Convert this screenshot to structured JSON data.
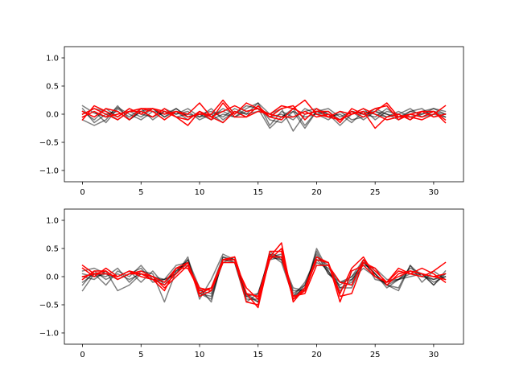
{
  "colors": {
    "black_series": "#000000",
    "red_series": "#ff0000",
    "background": "#ffffff"
  },
  "chart_data": [
    {
      "type": "line",
      "title": "",
      "xlabel": "",
      "ylabel": "",
      "xlim": [
        -1.55,
        32.55
      ],
      "ylim": [
        -1.2,
        1.2
      ],
      "xticks": [
        0,
        5,
        10,
        15,
        20,
        25,
        30
      ],
      "yticks": [
        -1.0,
        -0.5,
        0.0,
        0.5,
        1.0
      ],
      "xtick_labels": [
        "0",
        "5",
        "10",
        "15",
        "20",
        "25",
        "30"
      ],
      "ytick_labels": [
        "−1.0",
        "−0.5",
        "0.0",
        "0.5",
        "1.0"
      ],
      "grid": false,
      "x": [
        0,
        1,
        2,
        3,
        4,
        5,
        6,
        7,
        8,
        9,
        10,
        11,
        12,
        13,
        14,
        15,
        16,
        17,
        18,
        19,
        20,
        21,
        22,
        23,
        24,
        25,
        26,
        27,
        28,
        29,
        30,
        31
      ],
      "series": [
        {
          "color": "#000000",
          "opacity": 0.5,
          "values": [
            0.15,
            0.02,
            -0.05,
            0.12,
            0.0,
            -0.1,
            0.05,
            0.0,
            0.1,
            -0.05,
            0.0,
            0.05,
            -0.05,
            0.1,
            0.0,
            0.2,
            -0.2,
            0.05,
            -0.05,
            0.05,
            0.1,
            0.0,
            -0.1,
            0.05,
            0.0,
            0.05,
            -0.05,
            0.0,
            0.1,
            -0.05,
            0.05,
            0.0
          ]
        },
        {
          "color": "#000000",
          "opacity": 0.5,
          "values": [
            -0.1,
            -0.2,
            -0.1,
            0.15,
            -0.1,
            0.05,
            0.1,
            -0.05,
            0.05,
            -0.1,
            0.05,
            -0.05,
            0.1,
            0.0,
            0.15,
            0.1,
            -0.25,
            -0.05,
            0.1,
            -0.2,
            0.05,
            0.0,
            -0.2,
            0.0,
            0.1,
            -0.1,
            0.05,
            0.0,
            -0.1,
            0.05,
            0.1,
            0.0
          ]
        },
        {
          "color": "#000000",
          "opacity": 0.5,
          "values": [
            0.05,
            -0.1,
            0.1,
            -0.05,
            0.1,
            0.0,
            -0.05,
            0.1,
            0.0,
            0.05,
            -0.1,
            0.0,
            0.05,
            -0.05,
            0.1,
            0.2,
            0.0,
            0.1,
            -0.3,
            0.0,
            0.05,
            0.1,
            -0.05,
            0.05,
            -0.1,
            0.05,
            0.0,
            -0.1,
            0.05,
            0.1,
            -0.05,
            0.0
          ]
        },
        {
          "color": "#000000",
          "opacity": 0.5,
          "values": [
            -0.05,
            0.05,
            -0.15,
            0.1,
            -0.05,
            0.1,
            -0.1,
            0.05,
            -0.05,
            0.0,
            -0.05,
            0.1,
            -0.1,
            0.05,
            -0.05,
            0.15,
            -0.1,
            -0.15,
            0.05,
            -0.05,
            0.0,
            -0.1,
            0.05,
            -0.1,
            -0.05,
            0.1,
            0.0,
            -0.05,
            0.05,
            0.0,
            0.1,
            0.05
          ]
        },
        {
          "color": "#000000",
          "opacity": 0.5,
          "values": [
            0.0,
            0.1,
            0.05,
            -0.1,
            0.05,
            -0.05,
            0.1,
            -0.05,
            0.1,
            -0.05,
            0.0,
            -0.1,
            0.0,
            -0.05,
            0.05,
            0.1,
            -0.05,
            0.0,
            -0.1,
            0.1,
            0.0,
            0.05,
            -0.1,
            0.05,
            0.0,
            -0.05,
            0.1,
            -0.05,
            0.0,
            -0.05,
            0.0,
            -0.05
          ]
        },
        {
          "color": "#000000",
          "opacity": 0.5,
          "values": [
            0.1,
            -0.15,
            0.0,
            0.05,
            -0.1,
            0.05,
            -0.05,
            0.05,
            0.0,
            0.1,
            -0.05,
            0.0,
            -0.15,
            0.05,
            0.0,
            0.05,
            0.0,
            -0.05,
            0.05,
            -0.25,
            0.05,
            -0.05,
            0.0,
            -0.15,
            0.05,
            0.0,
            -0.05,
            0.05,
            -0.05,
            0.0,
            0.05,
            -0.05
          ]
        },
        {
          "color": "#ff0000",
          "opacity": 1.0,
          "values": [
            -0.1,
            0.15,
            0.05,
            -0.05,
            0.1,
            0.0,
            0.1,
            0.05,
            -0.05,
            -0.2,
            0.05,
            -0.1,
            0.2,
            -0.05,
            -0.05,
            0.15,
            -0.05,
            0.1,
            0.15,
            -0.1,
            0.1,
            -0.05,
            -0.1,
            0.05,
            -0.05,
            0.05,
            0.2,
            -0.05,
            -0.05,
            -0.1,
            0.0,
            0.15
          ]
        },
        {
          "color": "#ff0000",
          "opacity": 1.0,
          "values": [
            0.05,
            -0.05,
            0.1,
            0.05,
            -0.1,
            0.1,
            0.05,
            -0.1,
            0.05,
            0.0,
            0.2,
            -0.05,
            0.05,
            0.15,
            0.05,
            0.1,
            -0.05,
            -0.1,
            0.1,
            0.25,
            0.0,
            -0.05,
            0.05,
            0.0,
            0.05,
            -0.25,
            -0.05,
            0.0,
            -0.1,
            0.05,
            0.05,
            -0.1
          ]
        },
        {
          "color": "#ff0000",
          "opacity": 1.0,
          "values": [
            0.0,
            0.1,
            0.0,
            -0.1,
            0.05,
            0.1,
            0.1,
            0.0,
            0.05,
            -0.05,
            0.0,
            0.0,
            0.25,
            0.0,
            0.2,
            0.1,
            0.0,
            0.15,
            0.1,
            0.0,
            0.05,
            0.05,
            -0.15,
            0.1,
            0.0,
            0.1,
            0.15,
            -0.1,
            0.0,
            0.05,
            -0.05,
            0.0
          ]
        },
        {
          "color": "#ff0000",
          "opacity": 1.0,
          "values": [
            -0.05,
            0.05,
            -0.05,
            0.0,
            0.05,
            0.05,
            -0.05,
            0.1,
            -0.05,
            -0.1,
            0.05,
            -0.05,
            -0.15,
            0.05,
            -0.05,
            0.05,
            0.0,
            -0.05,
            -0.05,
            0.05,
            -0.05,
            0.0,
            -0.1,
            0.0,
            0.1,
            0.0,
            -0.1,
            -0.05,
            0.0,
            -0.05,
            0.05,
            -0.15
          ]
        }
      ]
    },
    {
      "type": "line",
      "title": "",
      "xlabel": "",
      "ylabel": "",
      "xlim": [
        -1.55,
        32.55
      ],
      "ylim": [
        -1.2,
        1.2
      ],
      "xticks": [
        0,
        5,
        10,
        15,
        20,
        25,
        30
      ],
      "yticks": [
        -1.0,
        -0.5,
        0.0,
        0.5,
        1.0
      ],
      "xtick_labels": [
        "0",
        "5",
        "10",
        "15",
        "20",
        "25",
        "30"
      ],
      "ytick_labels": [
        "−1.0",
        "−0.5",
        "0.0",
        "0.5",
        "1.0"
      ],
      "grid": false,
      "x": [
        0,
        1,
        2,
        3,
        4,
        5,
        6,
        7,
        8,
        9,
        10,
        11,
        12,
        13,
        14,
        15,
        16,
        17,
        18,
        19,
        20,
        21,
        22,
        23,
        24,
        25,
        26,
        27,
        28,
        29,
        30,
        31
      ],
      "series": [
        {
          "color": "#000000",
          "opacity": 0.5,
          "values": [
            -0.25,
            0.05,
            -0.15,
            0.1,
            0.0,
            0.2,
            -0.05,
            -0.05,
            0.05,
            0.35,
            -0.4,
            -0.05,
            0.4,
            0.3,
            -0.35,
            -0.45,
            0.3,
            0.35,
            -0.35,
            -0.2,
            0.45,
            0.05,
            -0.15,
            0.0,
            0.3,
            0.05,
            -0.15,
            -0.2,
            0.2,
            0.0,
            -0.05,
            0.0
          ]
        },
        {
          "color": "#000000",
          "opacity": 0.5,
          "values": [
            -0.1,
            0.05,
            0.0,
            0.15,
            -0.1,
            0.1,
            0.05,
            -0.45,
            0.1,
            0.3,
            -0.3,
            -0.2,
            0.35,
            0.25,
            -0.45,
            -0.3,
            0.35,
            0.3,
            -0.2,
            -0.25,
            0.5,
            0.1,
            -0.25,
            -0.05,
            0.15,
            0.0,
            -0.15,
            -0.05,
            0.15,
            0.05,
            -0.15,
            0.05
          ]
        },
        {
          "color": "#000000",
          "opacity": 0.5,
          "values": [
            0.1,
            0.15,
            0.05,
            -0.05,
            0.05,
            0.15,
            -0.1,
            -0.05,
            0.2,
            0.25,
            -0.3,
            -0.4,
            0.3,
            0.3,
            -0.3,
            -0.35,
            0.4,
            0.25,
            -0.35,
            -0.1,
            0.35,
            0.2,
            -0.2,
            -0.1,
            0.3,
            -0.05,
            -0.1,
            -0.05,
            0.1,
            0.05,
            -0.1,
            0.0
          ]
        },
        {
          "color": "#000000",
          "opacity": 0.5,
          "values": [
            0.0,
            -0.05,
            0.1,
            -0.25,
            -0.15,
            0.05,
            -0.05,
            -0.1,
            0.1,
            0.25,
            -0.3,
            -0.35,
            0.3,
            0.25,
            -0.4,
            -0.4,
            0.45,
            0.3,
            -0.25,
            -0.25,
            0.3,
            0.1,
            -0.2,
            -0.2,
            0.25,
            0.05,
            -0.15,
            -0.25,
            0.2,
            -0.1,
            0.1,
            -0.05
          ]
        },
        {
          "color": "#000000",
          "opacity": 0.5,
          "values": [
            0.05,
            0.0,
            0.05,
            0.0,
            0.1,
            -0.1,
            0.1,
            -0.15,
            0.15,
            0.2,
            -0.25,
            -0.3,
            0.25,
            0.35,
            -0.35,
            -0.3,
            0.35,
            0.4,
            -0.3,
            -0.15,
            0.25,
            0.15,
            -0.1,
            0.0,
            0.2,
            0.15,
            -0.05,
            -0.05,
            0.0,
            0.05,
            -0.05,
            0.05
          ]
        },
        {
          "color": "#000000",
          "opacity": 0.5,
          "values": [
            -0.15,
            0.1,
            -0.05,
            0.05,
            -0.05,
            0.05,
            0.0,
            -0.05,
            0.05,
            0.3,
            -0.2,
            -0.45,
            0.35,
            0.3,
            -0.3,
            -0.45,
            0.4,
            0.35,
            -0.4,
            -0.15,
            0.4,
            0.05,
            -0.1,
            -0.05,
            0.25,
            0.05,
            -0.2,
            -0.05,
            0.05,
            0.05,
            -0.15,
            0.1
          ]
        },
        {
          "color": "#ff0000",
          "opacity": 1.0,
          "values": [
            0.2,
            0.05,
            0.1,
            -0.05,
            0.05,
            0.05,
            -0.05,
            -0.25,
            0.15,
            0.25,
            -0.3,
            -0.2,
            0.3,
            0.35,
            -0.3,
            -0.55,
            0.35,
            0.6,
            -0.45,
            -0.2,
            0.3,
            0.25,
            -0.45,
            0.1,
            0.2,
            0.0,
            -0.1,
            0.15,
            0.05,
            0.0,
            0.1,
            0.25
          ]
        },
        {
          "color": "#ff0000",
          "opacity": 1.0,
          "values": [
            0.15,
            0.0,
            0.15,
            0.0,
            0.1,
            0.0,
            -0.05,
            -0.15,
            0.05,
            0.25,
            -0.35,
            -0.25,
            0.3,
            0.3,
            -0.45,
            -0.5,
            0.45,
            0.45,
            -0.4,
            -0.25,
            0.3,
            0.25,
            -0.3,
            0.15,
            0.35,
            0.0,
            -0.1,
            0.1,
            0.05,
            0.15,
            0.05,
            -0.1
          ]
        },
        {
          "color": "#ff0000",
          "opacity": 1.0,
          "values": [
            -0.05,
            0.1,
            0.1,
            -0.05,
            0.05,
            0.1,
            0.0,
            -0.1,
            0.15,
            0.15,
            -0.25,
            -0.2,
            0.3,
            0.35,
            -0.3,
            -0.35,
            0.35,
            0.35,
            -0.4,
            -0.2,
            0.35,
            0.25,
            -0.35,
            -0.3,
            0.25,
            0.15,
            -0.15,
            0.05,
            0.1,
            0.05,
            0.0,
            0.05
          ]
        },
        {
          "color": "#ff0000",
          "opacity": 1.0,
          "values": [
            0.0,
            0.05,
            0.05,
            0.0,
            0.1,
            0.05,
            0.0,
            -0.2,
            0.0,
            0.2,
            -0.2,
            -0.25,
            0.25,
            0.25,
            -0.2,
            -0.4,
            0.3,
            0.5,
            -0.35,
            -0.3,
            0.2,
            0.2,
            -0.1,
            -0.15,
            0.3,
            0.1,
            -0.1,
            0.0,
            0.1,
            0.05,
            0.0,
            -0.05
          ]
        }
      ]
    }
  ]
}
